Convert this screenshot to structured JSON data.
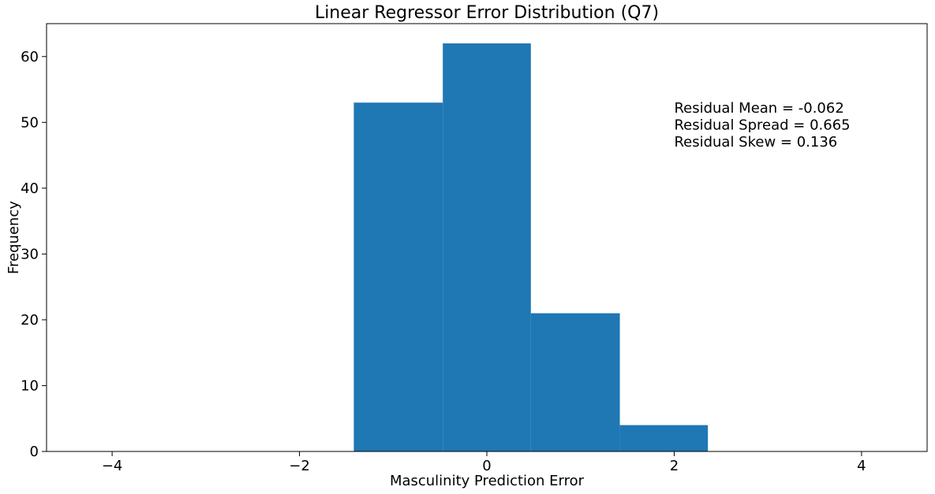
{
  "chart_data": {
    "type": "bar",
    "title": "Linear Regressor Error Distribution (Q7)",
    "xlabel": "Masculinity Prediction Error",
    "ylabel": "Frequency",
    "xlim": [
      -4.7,
      4.7
    ],
    "ylim": [
      0,
      65
    ],
    "xticks": [
      -4,
      -2,
      0,
      2,
      4
    ],
    "xtick_labels": [
      "−4",
      "−2",
      "0",
      "2",
      "4"
    ],
    "yticks": [
      0,
      10,
      20,
      30,
      40,
      50,
      60
    ],
    "ytick_labels": [
      "0",
      "10",
      "20",
      "30",
      "40",
      "50",
      "60"
    ],
    "bin_edges": [
      -1.42,
      -0.47,
      0.47,
      1.42,
      2.36
    ],
    "values": [
      53,
      62,
      21,
      4
    ],
    "bar_color": "#1f77b4",
    "grid": false,
    "annotations": [
      "Residual Mean = -0.062",
      "Residual Spread = 0.665",
      "Residual Skew = 0.136"
    ],
    "annotation_anchor": [
      2.0,
      51.5
    ]
  }
}
